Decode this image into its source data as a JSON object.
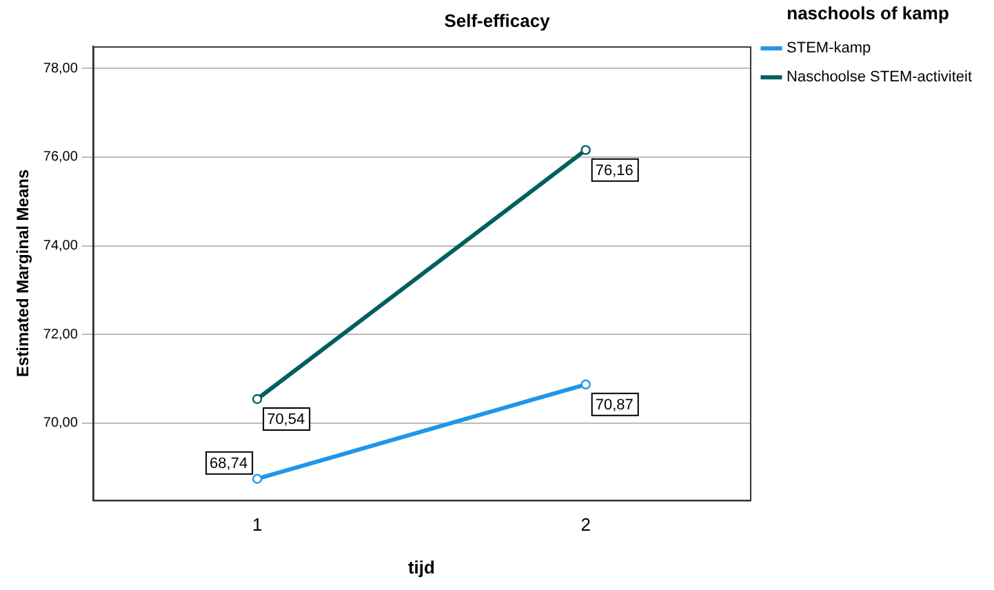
{
  "chart_data": {
    "type": "line",
    "title": "Self-efficacy",
    "xlabel": "tijd",
    "ylabel": "Estimated Marginal Means",
    "legend_title": "naschools of kamp",
    "categories": [
      "1",
      "2"
    ],
    "series": [
      {
        "name": "STEM-kamp",
        "color": "#2196e8",
        "values": [
          68.74,
          70.87
        ],
        "value_labels": [
          "68,74",
          "70,87"
        ]
      },
      {
        "name": "Naschoolse STEM-activiteit",
        "color": "#00605e",
        "values": [
          70.54,
          76.16
        ],
        "value_labels": [
          "70,54",
          "76,16"
        ]
      }
    ],
    "ylim": [
      68.26,
      78.5
    ],
    "yticks": [
      {
        "value": 70,
        "label": "70,00"
      },
      {
        "value": 72,
        "label": "72,00"
      },
      {
        "value": 74,
        "label": "74,00"
      },
      {
        "value": 76,
        "label": "76,00"
      },
      {
        "value": 78,
        "label": "78,00"
      }
    ],
    "grid": "y",
    "legend": "top right",
    "marker": "circle",
    "line_style": "solid"
  }
}
